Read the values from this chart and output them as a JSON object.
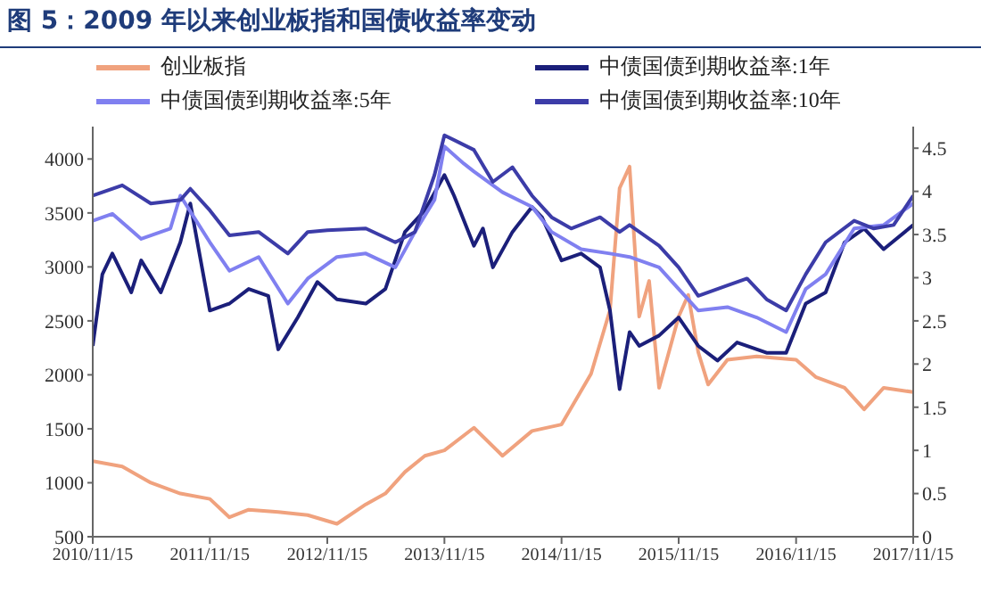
{
  "chart_data": {
    "type": "line",
    "title": "图 5：2009 年以来创业板指和国债收益率变动",
    "xlim": [
      "2010-11-15",
      "2017-11-15"
    ],
    "xticks": [
      {
        "value": "2010-11-15",
        "label": "2010/11/15"
      },
      {
        "value": "2011-11-15",
        "label": "2011/11/15"
      },
      {
        "value": "2012-11-15",
        "label": "2012/11/15"
      },
      {
        "value": "2013-11-15",
        "label": "2013/11/15"
      },
      {
        "value": "2014-11-15",
        "label": "2014/11/15"
      },
      {
        "value": "2015-11-15",
        "label": "2015/11/15"
      },
      {
        "value": "2016-11-15",
        "label": "2016/11/15"
      },
      {
        "value": "2017-11-15",
        "label": "2017/11/15"
      }
    ],
    "ylim": [
      500,
      4300
    ],
    "yticks": [
      500,
      1000,
      1500,
      2000,
      2500,
      3000,
      3500,
      4000
    ],
    "y2lim": [
      0,
      4.75
    ],
    "y2ticks": [
      0,
      0.5,
      1,
      1.5,
      2,
      2.5,
      3,
      3.5,
      4,
      4.5
    ],
    "legend": "top",
    "marker": "none",
    "line_style": "solid",
    "series": [
      {
        "name": "创业板指",
        "color": "#f0a27e",
        "x": [
          "2010-11-15",
          "2011-02-15",
          "2011-05-15",
          "2011-08-15",
          "2011-11-15",
          "2012-01-15",
          "2012-03-15",
          "2012-06-15",
          "2012-09-15",
          "2012-12-15",
          "2013-03-15",
          "2013-05-15",
          "2013-07-15",
          "2013-09-15",
          "2013-11-15",
          "2014-02-15",
          "2014-05-15",
          "2014-08-15",
          "2014-11-15",
          "2015-02-15",
          "2015-04-15",
          "2015-05-15",
          "2015-06-15",
          "2015-07-15",
          "2015-08-15",
          "2015-09-15",
          "2015-11-15",
          "2015-12-15",
          "2016-01-15",
          "2016-02-15",
          "2016-04-15",
          "2016-07-15",
          "2016-11-15",
          "2017-01-15",
          "2017-04-15",
          "2017-06-15",
          "2017-08-15",
          "2017-11-15"
        ],
        "values": [
          1200,
          1150,
          1000,
          900,
          850,
          680,
          750,
          730,
          700,
          620,
          800,
          900,
          1100,
          1250,
          1300,
          1510,
          1250,
          1480,
          1540,
          2010,
          2600,
          3730,
          3930,
          2540,
          2870,
          1880,
          2540,
          2740,
          2210,
          1910,
          2140,
          2170,
          2140,
          1980,
          1880,
          1680,
          1880,
          1840
        ]
      },
      {
        "name": "中债国债到期收益率:1年",
        "color": "#1b1f7a",
        "axis": "y2",
        "x": [
          "2010-11-15",
          "2010-12-15",
          "2011-01-15",
          "2011-03-15",
          "2011-04-15",
          "2011-06-15",
          "2011-08-15",
          "2011-09-15",
          "2011-11-15",
          "2012-01-15",
          "2012-03-15",
          "2012-05-15",
          "2012-06-15",
          "2012-08-15",
          "2012-10-15",
          "2012-12-15",
          "2013-03-15",
          "2013-05-15",
          "2013-07-15",
          "2013-09-15",
          "2013-11-15",
          "2013-12-15",
          "2014-02-15",
          "2014-03-15",
          "2014-04-15",
          "2014-06-15",
          "2014-08-15",
          "2014-09-15",
          "2014-11-15",
          "2015-01-15",
          "2015-03-15",
          "2015-04-15",
          "2015-05-15",
          "2015-06-15",
          "2015-07-15",
          "2015-09-15",
          "2015-11-15",
          "2016-01-15",
          "2016-03-15",
          "2016-05-15",
          "2016-08-15",
          "2016-10-15",
          "2016-12-15",
          "2017-02-15",
          "2017-04-15",
          "2017-06-15",
          "2017-08-15",
          "2017-11-15"
        ],
        "values": [
          2.21,
          3.04,
          3.28,
          2.83,
          3.2,
          2.83,
          3.41,
          3.86,
          2.62,
          2.7,
          2.87,
          2.79,
          2.17,
          2.54,
          2.95,
          2.75,
          2.7,
          2.87,
          3.53,
          3.78,
          4.19,
          3.95,
          3.37,
          3.57,
          3.12,
          3.53,
          3.82,
          3.7,
          3.2,
          3.28,
          3.12,
          2.62,
          1.71,
          2.37,
          2.21,
          2.33,
          2.54,
          2.21,
          2.04,
          2.25,
          2.13,
          2.13,
          2.7,
          2.83,
          3.41,
          3.57,
          3.33,
          3.61
        ]
      },
      {
        "name": "中债国债到期收益率:5年",
        "color": "#8080f0",
        "axis": "y2",
        "x": [
          "2010-11-15",
          "2011-01-15",
          "2011-04-15",
          "2011-07-15",
          "2011-08-15",
          "2011-11-15",
          "2012-01-15",
          "2012-04-15",
          "2012-07-15",
          "2012-09-15",
          "2012-12-15",
          "2013-03-15",
          "2013-06-15",
          "2013-08-15",
          "2013-10-15",
          "2013-11-15",
          "2014-01-15",
          "2014-02-15",
          "2014-05-15",
          "2014-08-15",
          "2014-10-15",
          "2015-01-15",
          "2015-04-15",
          "2015-06-15",
          "2015-09-15",
          "2015-11-15",
          "2016-01-15",
          "2016-04-15",
          "2016-07-15",
          "2016-10-15",
          "2016-12-15",
          "2017-02-15",
          "2017-05-15",
          "2017-08-15",
          "2017-11-15"
        ],
        "values": [
          3.66,
          3.74,
          3.45,
          3.57,
          3.95,
          3.41,
          3.08,
          3.24,
          2.7,
          2.99,
          3.24,
          3.28,
          3.12,
          3.53,
          3.9,
          4.52,
          4.32,
          4.23,
          3.99,
          3.82,
          3.53,
          3.33,
          3.28,
          3.24,
          3.12,
          2.87,
          2.62,
          2.66,
          2.54,
          2.37,
          2.87,
          3.04,
          3.57,
          3.61,
          3.86
        ]
      },
      {
        "name": "中债国债到期收益率:10年",
        "color": "#3c3ca8",
        "axis": "y2",
        "x": [
          "2010-11-15",
          "2011-02-15",
          "2011-05-15",
          "2011-08-15",
          "2011-09-15",
          "2011-11-15",
          "2012-01-15",
          "2012-04-15",
          "2012-07-15",
          "2012-09-15",
          "2012-11-15",
          "2013-03-15",
          "2013-06-15",
          "2013-08-15",
          "2013-10-15",
          "2013-11-15",
          "2014-02-15",
          "2014-04-15",
          "2014-06-15",
          "2014-08-15",
          "2014-10-15",
          "2014-12-15",
          "2015-03-15",
          "2015-05-15",
          "2015-06-15",
          "2015-09-15",
          "2015-11-15",
          "2016-01-15",
          "2016-04-15",
          "2016-06-15",
          "2016-08-15",
          "2016-10-15",
          "2016-12-15",
          "2017-02-15",
          "2017-05-15",
          "2017-07-15",
          "2017-09-15",
          "2017-11-15"
        ],
        "values": [
          3.95,
          4.07,
          3.86,
          3.9,
          4.03,
          3.78,
          3.49,
          3.53,
          3.28,
          3.53,
          3.55,
          3.57,
          3.41,
          3.53,
          4.19,
          4.65,
          4.48,
          4.11,
          4.28,
          3.95,
          3.7,
          3.57,
          3.7,
          3.53,
          3.61,
          3.37,
          3.12,
          2.79,
          2.91,
          2.99,
          2.75,
          2.62,
          3.04,
          3.41,
          3.66,
          3.57,
          3.61,
          3.95
        ]
      }
    ]
  }
}
